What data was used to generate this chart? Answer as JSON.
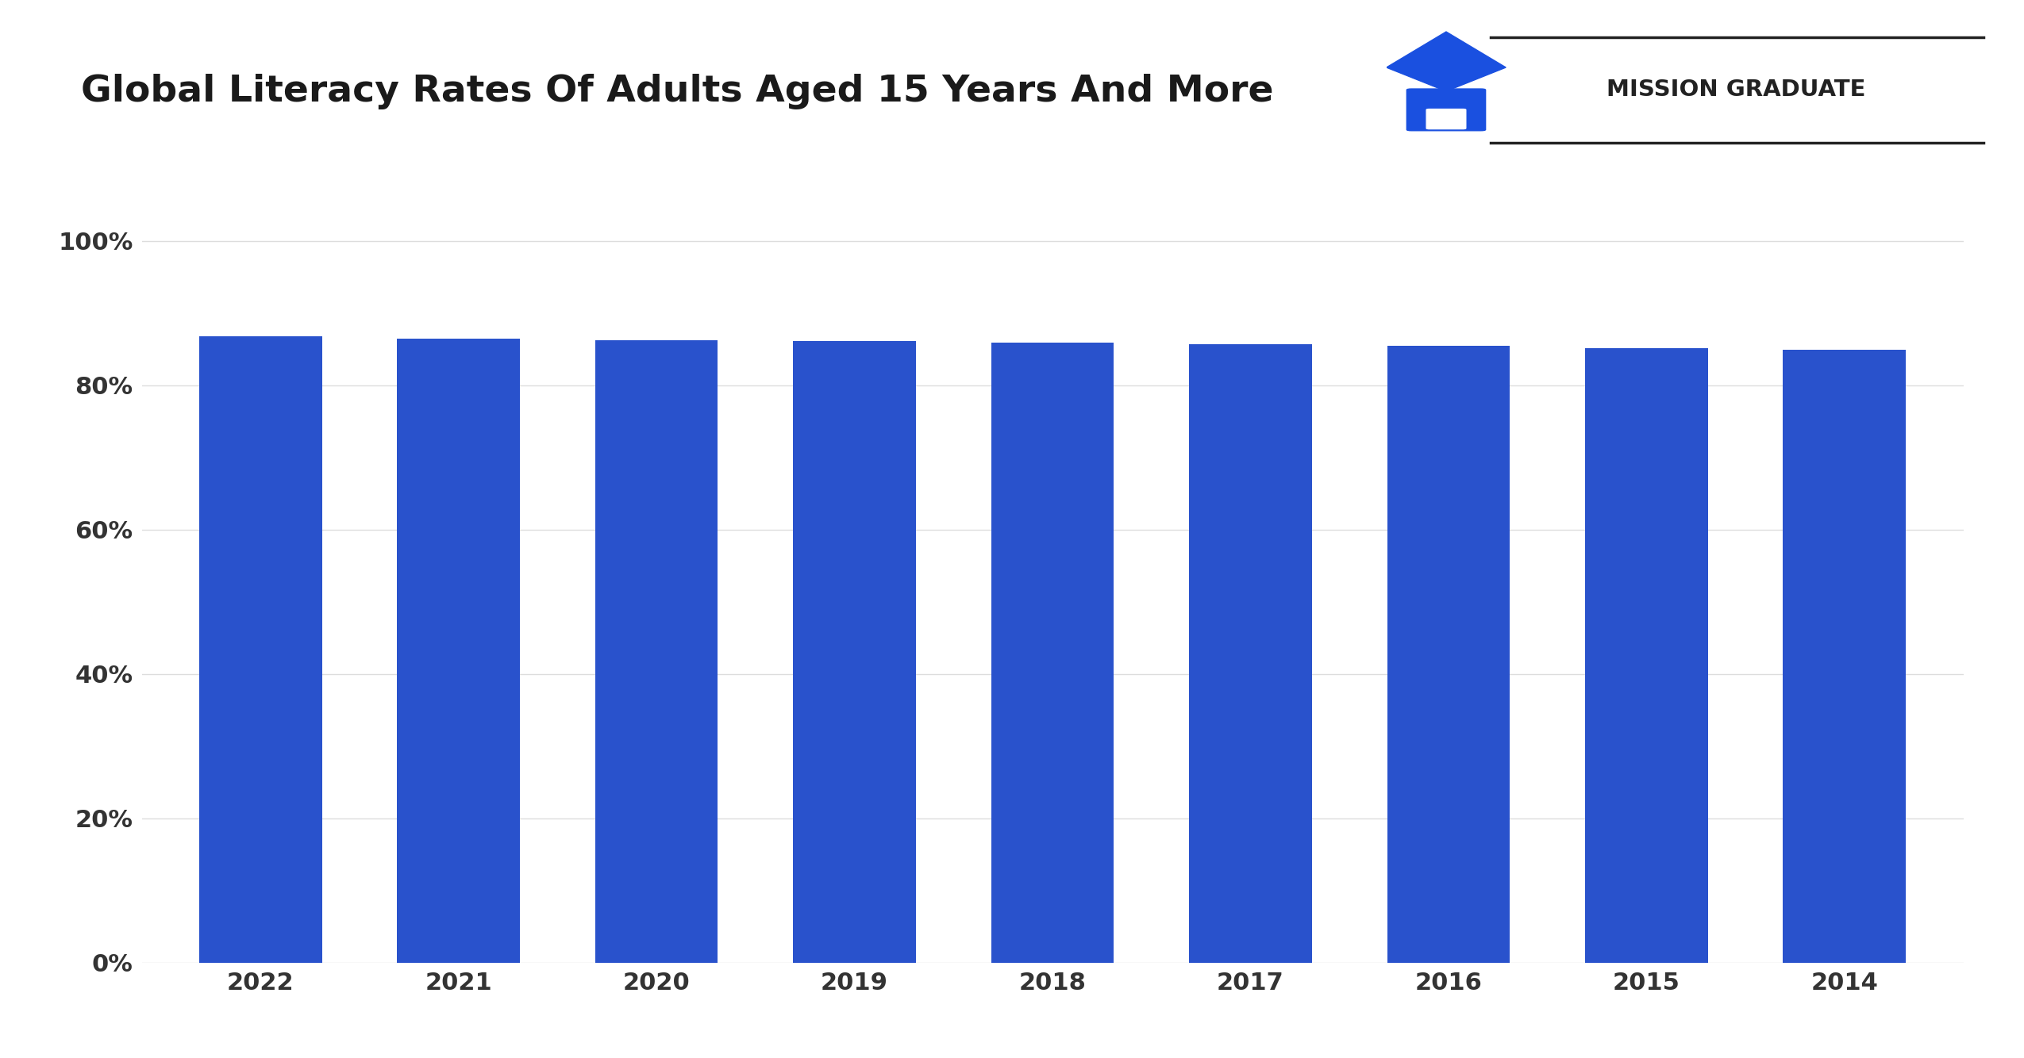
{
  "title": "Global Literacy Rates Of Adults Aged 15 Years And More",
  "categories": [
    "2022",
    "2021",
    "2020",
    "2019",
    "2018",
    "2017",
    "2016",
    "2015",
    "2014"
  ],
  "values": [
    86.8,
    86.5,
    86.3,
    86.1,
    85.9,
    85.7,
    85.5,
    85.2,
    84.9
  ],
  "bar_color": "#2952cc",
  "background_color": "#ffffff",
  "yticks": [
    0,
    20,
    40,
    60,
    80,
    100
  ],
  "ytick_labels": [
    "0%",
    "20%",
    "40%",
    "60%",
    "80%",
    "100%"
  ],
  "ylim": [
    0,
    107
  ],
  "title_fontsize": 34,
  "tick_fontsize": 22,
  "logo_text": "MISSION GRADUATE",
  "logo_cap_color": "#1a50e0",
  "logo_text_color": "#222222",
  "grid_color": "#dddddd"
}
